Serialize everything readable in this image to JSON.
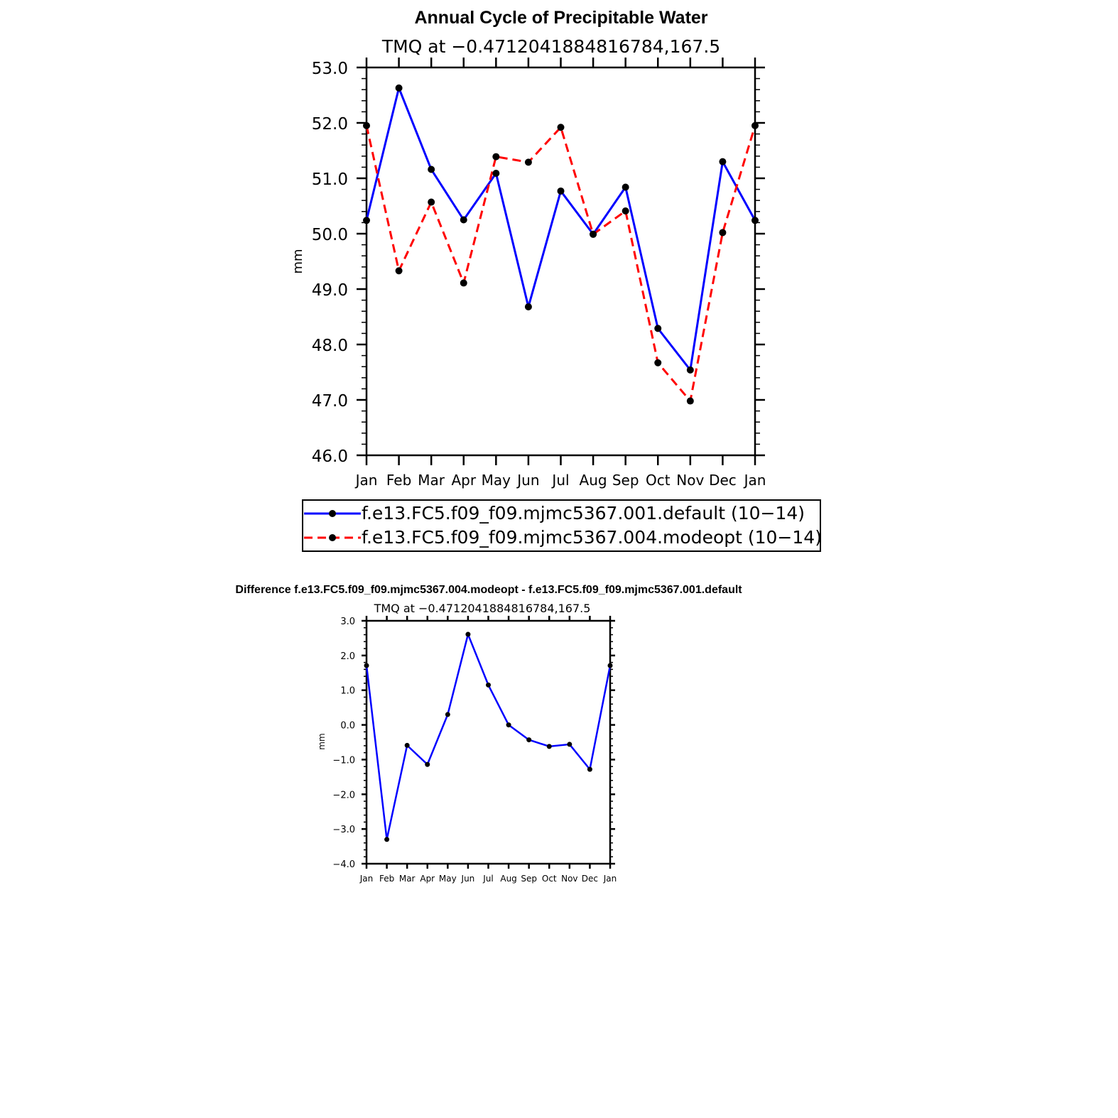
{
  "chart_data": [
    {
      "type": "line",
      "title": "Annual Cycle of Precipitable Water",
      "subtitle": "TMQ at −0.4712041884816784,167.5",
      "xlabel": "",
      "ylabel": "mm",
      "categories": [
        "Jan",
        "Feb",
        "Mar",
        "Apr",
        "May",
        "Jun",
        "Jul",
        "Aug",
        "Sep",
        "Oct",
        "Nov",
        "Dec",
        "Jan"
      ],
      "ylim": [
        46.0,
        53.0
      ],
      "ytick_labels": [
        "46.0",
        "47.0",
        "48.0",
        "49.0",
        "50.0",
        "51.0",
        "52.0",
        "53.0"
      ],
      "series": [
        {
          "name": "f.e13.FC5.f09_f09.mjmc5367.001.default (10−14)",
          "color": "#0000ff",
          "style": "solid",
          "values": [
            50.24,
            52.63,
            51.16,
            50.25,
            51.09,
            48.68,
            50.77,
            49.99,
            50.84,
            48.29,
            47.54,
            51.3,
            50.24
          ]
        },
        {
          "name": "f.e13.FC5.f09_f09.mjmc5367.004.modeopt (10−14)",
          "color": "#ff0000",
          "style": "dashed",
          "values": [
            51.95,
            49.33,
            50.57,
            49.11,
            51.39,
            51.29,
            51.92,
            49.99,
            50.41,
            47.67,
            46.98,
            50.02,
            51.95
          ]
        }
      ],
      "legend_position": "bottom"
    },
    {
      "type": "line",
      "title": "Difference f.e13.FC5.f09_f09.mjmc5367.004.modeopt - f.e13.FC5.f09_f09.mjmc5367.001.default",
      "subtitle": "TMQ at −0.4712041884816784,167.5",
      "xlabel": "",
      "ylabel": "mm",
      "categories": [
        "Jan",
        "Feb",
        "Mar",
        "Apr",
        "May",
        "Jun",
        "Jul",
        "Aug",
        "Sep",
        "Oct",
        "Nov",
        "Dec",
        "Jan"
      ],
      "ylim": [
        -4.0,
        3.0
      ],
      "ytick_labels": [
        "−4.0",
        "−3.0",
        "−2.0",
        "−1.0",
        "0.0",
        "1.0",
        "2.0",
        "3.0"
      ],
      "series": [
        {
          "name": "Difference",
          "color": "#0000ff",
          "style": "solid",
          "values": [
            1.71,
            -3.3,
            -0.59,
            -1.14,
            0.3,
            2.61,
            1.15,
            0.0,
            -0.43,
            -0.62,
            -0.56,
            -1.28,
            1.71
          ]
        }
      ]
    }
  ]
}
